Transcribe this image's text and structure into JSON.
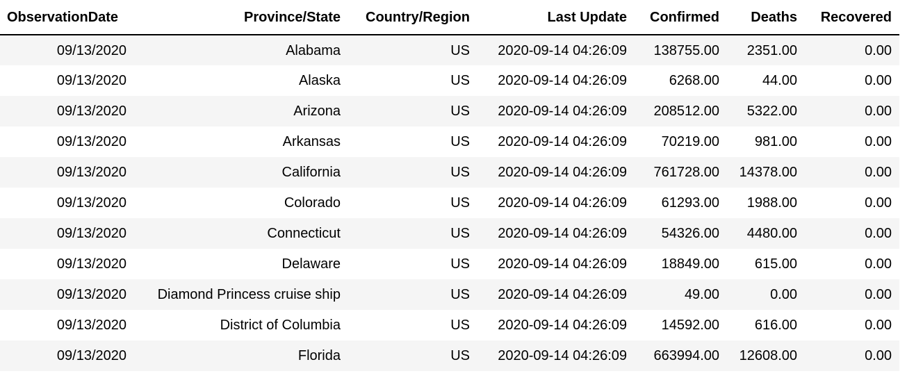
{
  "table": {
    "columns": [
      "ObservationDate",
      "Province/State",
      "Country/Region",
      "Last Update",
      "Confirmed",
      "Deaths",
      "Recovered"
    ],
    "rows": [
      [
        "09/13/2020",
        "Alabama",
        "US",
        "2020-09-14 04:26:09",
        "138755.00",
        "2351.00",
        "0.00"
      ],
      [
        "09/13/2020",
        "Alaska",
        "US",
        "2020-09-14 04:26:09",
        "6268.00",
        "44.00",
        "0.00"
      ],
      [
        "09/13/2020",
        "Arizona",
        "US",
        "2020-09-14 04:26:09",
        "208512.00",
        "5322.00",
        "0.00"
      ],
      [
        "09/13/2020",
        "Arkansas",
        "US",
        "2020-09-14 04:26:09",
        "70219.00",
        "981.00",
        "0.00"
      ],
      [
        "09/13/2020",
        "California",
        "US",
        "2020-09-14 04:26:09",
        "761728.00",
        "14378.00",
        "0.00"
      ],
      [
        "09/13/2020",
        "Colorado",
        "US",
        "2020-09-14 04:26:09",
        "61293.00",
        "1988.00",
        "0.00"
      ],
      [
        "09/13/2020",
        "Connecticut",
        "US",
        "2020-09-14 04:26:09",
        "54326.00",
        "4480.00",
        "0.00"
      ],
      [
        "09/13/2020",
        "Delaware",
        "US",
        "2020-09-14 04:26:09",
        "18849.00",
        "615.00",
        "0.00"
      ],
      [
        "09/13/2020",
        "Diamond Princess cruise ship",
        "US",
        "2020-09-14 04:26:09",
        "49.00",
        "0.00",
        "0.00"
      ],
      [
        "09/13/2020",
        "District of Columbia",
        "US",
        "2020-09-14 04:26:09",
        "14592.00",
        "616.00",
        "0.00"
      ],
      [
        "09/13/2020",
        "Florida",
        "US",
        "2020-09-14 04:26:09",
        "663994.00",
        "12608.00",
        "0.00"
      ]
    ]
  }
}
